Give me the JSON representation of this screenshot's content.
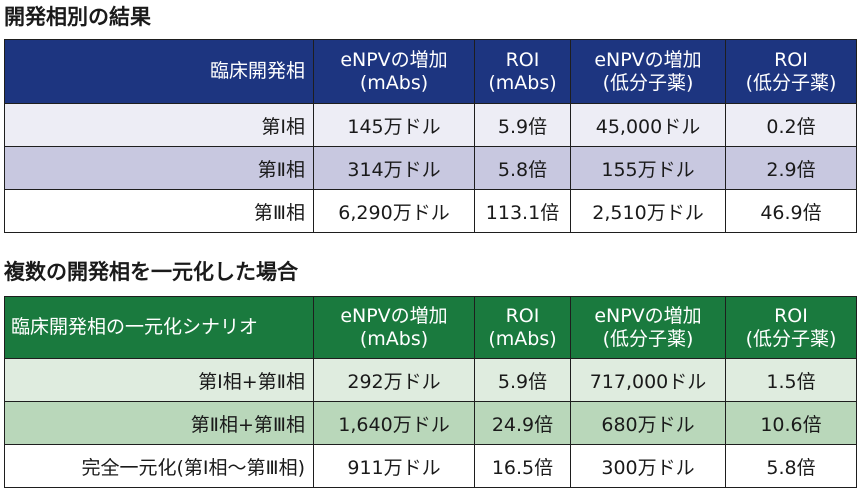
{
  "section1": {
    "title": "開発相別の結果",
    "header": {
      "phase": "臨床開発相",
      "enpv_mabs": [
        "eNPVの増加",
        "(mAbs)"
      ],
      "roi_mabs": [
        "ROI",
        "(mAbs)"
      ],
      "enpv_sm": [
        "eNPVの増加",
        "(低分子薬)"
      ],
      "roi_sm": [
        "ROI",
        "(低分子薬)"
      ]
    },
    "rows": [
      {
        "phase": "第Ⅰ相",
        "enpv_mabs": "145万ドル",
        "roi_mabs": "5.9倍",
        "enpv_sm": "45,000ドル",
        "roi_sm": "0.2倍"
      },
      {
        "phase": "第Ⅱ相",
        "enpv_mabs": "314万ドル",
        "roi_mabs": "5.8倍",
        "enpv_sm": "155万ドル",
        "roi_sm": "2.9倍"
      },
      {
        "phase": "第Ⅲ相",
        "enpv_mabs": "6,290万ドル",
        "roi_mabs": "113.1倍",
        "enpv_sm": "2,510万ドル",
        "roi_sm": "46.9倍"
      }
    ]
  },
  "section2": {
    "title": "複数の開発相を一元化した場合",
    "header": {
      "phase": "臨床開発相の一元化シナリオ",
      "enpv_mabs": [
        "eNPVの増加",
        "(mAbs)"
      ],
      "roi_mabs": [
        "ROI",
        "(mAbs)"
      ],
      "enpv_sm": [
        "eNPVの増加",
        "(低分子薬)"
      ],
      "roi_sm": [
        "ROI",
        "(低分子薬)"
      ]
    },
    "rows": [
      {
        "phase": "第Ⅰ相+第Ⅱ相",
        "enpv_mabs": "292万ドル",
        "roi_mabs": "5.9倍",
        "enpv_sm": "717,000ドル",
        "roi_sm": "1.5倍"
      },
      {
        "phase": "第Ⅱ相+第Ⅲ相",
        "enpv_mabs": "1,640万ドル",
        "roi_mabs": "24.9倍",
        "enpv_sm": "680万ドル",
        "roi_sm": "10.6倍"
      },
      {
        "phase": "完全一元化(第Ⅰ相〜第Ⅲ相)",
        "enpv_mabs": "911万ドル",
        "roi_mabs": "16.5倍",
        "enpv_sm": "300万ドル",
        "roi_sm": "5.8倍"
      }
    ]
  }
}
